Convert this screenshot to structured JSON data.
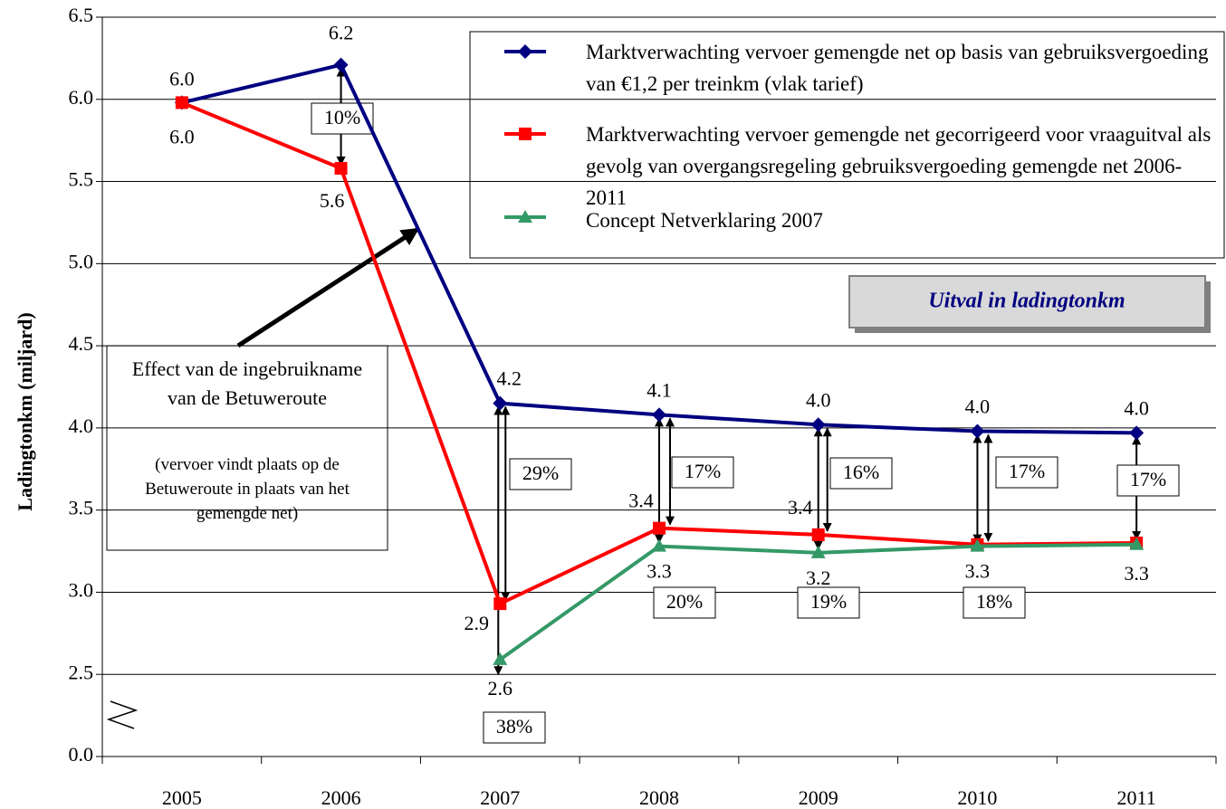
{
  "chart_data": {
    "type": "line",
    "y_label": "Ladingtonkm (miljard)",
    "categories": [
      "2005",
      "2006",
      "2007",
      "2008",
      "2009",
      "2010",
      "2011"
    ],
    "series": [
      {
        "name": "Marktverwachting vervoer gemengde net op basis van gebruiksvergoeding van €1,2 per treinkm (vlak tarief)",
        "color": "#000080",
        "marker": "diamond",
        "values": [
          5.98,
          6.21,
          4.15,
          4.08,
          4.02,
          3.98,
          3.97
        ],
        "value_labels": [
          "6.0",
          "6.2",
          "4.2",
          "4.1",
          "4.0",
          "4.0",
          "4.0"
        ]
      },
      {
        "name": "Marktverwachting vervoer gemengde net gecorrigeerd voor vraaguitval als gevolg van overgangsregeling gebruiksvergoeding gemengde net 2006-2011",
        "color": "#ff0000",
        "marker": "square",
        "values": [
          5.98,
          5.58,
          2.93,
          3.39,
          3.35,
          3.29,
          3.3
        ],
        "value_labels": [
          "6.0",
          "5.6",
          "2.9",
          "3.4",
          "3.4",
          null,
          null
        ]
      },
      {
        "name": "Concept Netverklaring 2007",
        "color": "#339966",
        "marker": "triangle",
        "values": [
          null,
          null,
          2.59,
          3.28,
          3.24,
          3.28,
          3.29
        ],
        "value_labels": [
          null,
          null,
          "2.6",
          "3.3",
          "3.2",
          "3.3",
          "3.3"
        ]
      }
    ],
    "ylim": [
      0,
      6.5
    ],
    "yticks": [
      {
        "value": 0,
        "label": "0.0"
      },
      2.5,
      {
        "value": 3,
        "label": "3.0"
      },
      3.5,
      {
        "value": 4,
        "label": "4.0"
      },
      4.5,
      {
        "value": 5,
        "label": "5.0"
      },
      5.5,
      {
        "value": 6,
        "label": "6.0"
      },
      6.5
    ],
    "axis_break": true,
    "grid": true,
    "legend": "top-right",
    "box_title": "Uitval in ladingtonkm",
    "callout": {
      "title": "Effect van de ingebruikname van de Betuweroute",
      "text": "(vervoer vindt plaats op de Betuweroute in plaats van het gemengde net)"
    },
    "annotations": [
      "10%",
      "29%",
      "38%",
      "17%",
      "20%",
      "16%",
      "19%",
      "17%",
      "18%",
      "17%"
    ]
  }
}
